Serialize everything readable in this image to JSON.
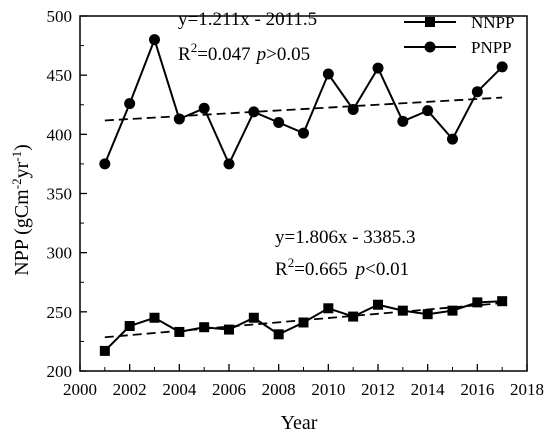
{
  "chart_data": {
    "type": "line",
    "xlabel": "Year",
    "ylabel": "NPP (gCm-2yr-1)",
    "ylabel_parts": {
      "main": "NPP (gCm",
      "exp1": "-2",
      "mid": "yr",
      "exp2": "-1",
      "close": ")"
    },
    "xlim": [
      2000,
      2018
    ],
    "ylim": [
      200,
      500
    ],
    "x_ticks": [
      "2000",
      "2002",
      "2004",
      "2006",
      "2008",
      "2010",
      "2012",
      "2014",
      "2016",
      "2018"
    ],
    "y_ticks": [
      "200",
      "250",
      "300",
      "350",
      "400",
      "450",
      "500"
    ],
    "legend_position": "top-right",
    "x": [
      2001,
      2002,
      2003,
      2004,
      2005,
      2006,
      2007,
      2008,
      2009,
      2010,
      2011,
      2012,
      2013,
      2014,
      2015,
      2016,
      2017
    ],
    "series": [
      {
        "name": "NNPP",
        "marker": "square",
        "values": [
          217,
          238,
          245,
          233,
          237,
          235,
          245,
          231,
          241,
          253,
          246,
          256,
          251,
          248,
          251,
          258,
          259
        ],
        "trend": {
          "slope": 1.806,
          "intercept": -3385.3
        }
      },
      {
        "name": "PNPP",
        "marker": "circle",
        "values": [
          375,
          426,
          480,
          413,
          422,
          375,
          419,
          410,
          401,
          451,
          421,
          456,
          411,
          420,
          396,
          436,
          457
        ],
        "trend": {
          "slope": 1.211,
          "intercept": -2011.5
        }
      }
    ],
    "annotations": {
      "pnpp_eq": "y=1.211x - 2011.5",
      "pnpp_r2_lhs": "R",
      "pnpp_r2_sup": "2",
      "pnpp_r2_val": "=0.047",
      "pnpp_p": "p",
      "pnpp_p_rel": ">0.05",
      "nnpp_eq": "y=1.806x - 3385.3",
      "nnpp_r2_lhs": "R",
      "nnpp_r2_sup": "2",
      "nnpp_r2_val": "=0.665",
      "nnpp_p": "p",
      "nnpp_p_rel": "<0.01"
    }
  }
}
